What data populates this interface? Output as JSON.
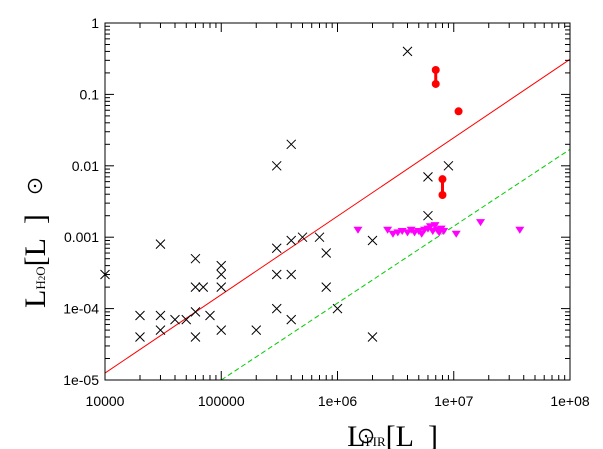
{
  "chart_data": {
    "type": "scatter",
    "xscale": "log",
    "yscale": "log",
    "xlim": [
      10000,
      100000000
    ],
    "ylim": [
      1e-05,
      1
    ],
    "grid": false,
    "xlabel": {
      "main": "L",
      "sub": "FIR",
      "unit_open": "[L",
      "unit_close": "]"
    },
    "ylabel": {
      "main": "L",
      "sub": "H2O",
      "unit_open": "[L",
      "unit_close": "]"
    },
    "x_ticks": [
      {
        "value": 10000,
        "label": "10000"
      },
      {
        "value": 100000,
        "label": "100000"
      },
      {
        "value": 1000000,
        "label": "1e+06"
      },
      {
        "value": 10000000,
        "label": "1e+07"
      },
      {
        "value": 100000000,
        "label": "1e+08"
      }
    ],
    "y_ticks": [
      {
        "value": 1,
        "label": "1"
      },
      {
        "value": 0.1,
        "label": "0.1"
      },
      {
        "value": 0.01,
        "label": "0.01"
      },
      {
        "value": 0.001,
        "label": "0.001"
      },
      {
        "value": 0.0001,
        "label": "1e-04"
      },
      {
        "value": 1e-05,
        "label": "1e-05"
      }
    ],
    "series": [
      {
        "marker": "cross",
        "color": "#000000",
        "points": [
          [
            10000,
            0.0003
          ],
          [
            20000,
            8e-05
          ],
          [
            20000,
            4e-05
          ],
          [
            30000,
            0.0008
          ],
          [
            30000,
            8e-05
          ],
          [
            30000,
            5e-05
          ],
          [
            40000,
            7e-05
          ],
          [
            50000,
            7e-05
          ],
          [
            60000,
            0.0005
          ],
          [
            60000,
            0.0002
          ],
          [
            60000,
            9e-05
          ],
          [
            60000,
            4e-05
          ],
          [
            70000,
            0.0002
          ],
          [
            80000,
            8e-05
          ],
          [
            100000,
            0.0004
          ],
          [
            100000,
            0.0003
          ],
          [
            100000,
            0.0002
          ],
          [
            100000,
            5e-05
          ],
          [
            200000,
            5e-05
          ],
          [
            300000,
            0.01
          ],
          [
            300000,
            0.0007
          ],
          [
            300000,
            0.0003
          ],
          [
            300000,
            0.0001
          ],
          [
            400000,
            0.02
          ],
          [
            400000,
            0.0009
          ],
          [
            400000,
            0.0003
          ],
          [
            400000,
            7e-05
          ],
          [
            500000,
            0.001
          ],
          [
            700000,
            0.001
          ],
          [
            800000,
            0.0006
          ],
          [
            800000,
            0.0002
          ],
          [
            1000000,
            0.0001
          ],
          [
            2000000,
            0.0009
          ],
          [
            2000000,
            4e-05
          ],
          [
            4000000,
            0.4
          ],
          [
            6000000,
            0.007
          ],
          [
            6000000,
            0.002
          ],
          [
            9000000,
            0.01
          ]
        ]
      },
      {
        "marker": "triangle-down",
        "color": "#ff00ff",
        "points": [
          [
            1500000,
            0.00125
          ],
          [
            2700000,
            0.00125
          ],
          [
            3000000,
            0.0011
          ],
          [
            3300000,
            0.00115
          ],
          [
            3600000,
            0.0012
          ],
          [
            4000000,
            0.00115
          ],
          [
            4300000,
            0.00125
          ],
          [
            4600000,
            0.00115
          ],
          [
            5000000,
            0.0012
          ],
          [
            5300000,
            0.0011
          ],
          [
            5600000,
            0.00125
          ],
          [
            6000000,
            0.0013
          ],
          [
            6300000,
            0.0014
          ],
          [
            6600000,
            0.0012
          ],
          [
            6900000,
            0.00145
          ],
          [
            7200000,
            0.00125
          ],
          [
            7500000,
            0.00115
          ],
          [
            7800000,
            0.0013
          ],
          [
            8200000,
            0.0012
          ],
          [
            10500000,
            0.0011
          ],
          [
            17000000,
            0.0016
          ],
          [
            37000000,
            0.00125
          ]
        ]
      },
      {
        "marker": "circle-pair",
        "color": "#ff0000",
        "points": [
          [
            7000000,
            0.22
          ],
          [
            7000000,
            0.14
          ],
          [
            11000000,
            0.058
          ],
          [
            8000000,
            0.0065
          ],
          [
            8000000,
            0.0039
          ]
        ],
        "connections": [
          [
            0,
            1
          ],
          [
            3,
            4
          ]
        ]
      }
    ],
    "lines": [
      {
        "color": "#ff0000",
        "dash": "solid",
        "x": [
          10000,
          100000000
        ],
        "y": [
          1.25e-05,
          0.31
        ]
      },
      {
        "color": "#00cc00",
        "dash": "dashed",
        "x": [
          100000,
          100000000
        ],
        "y": [
          1e-05,
          0.017
        ]
      }
    ]
  }
}
